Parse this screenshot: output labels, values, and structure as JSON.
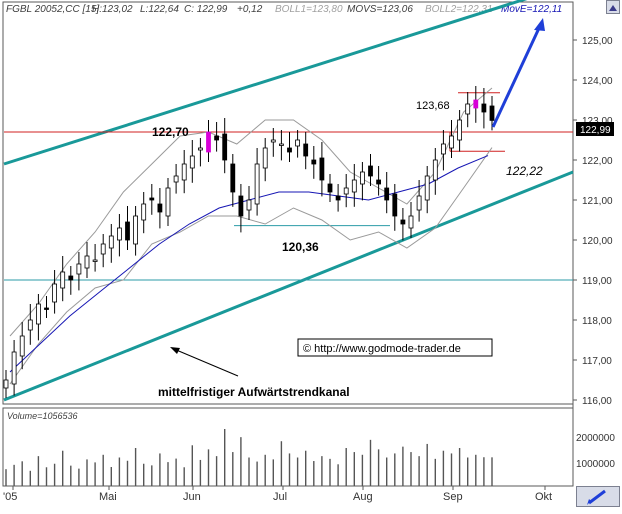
{
  "header": {
    "symbol": "FGBL 20052,CC [15]",
    "h": "H:123,02",
    "l": "L:122,64",
    "c": "C: 122,99",
    "chg": "+0,12",
    "boll1": "BOLL1=123,80",
    "movs": "MOVS=123,06",
    "boll2": "BOLL2=122,31",
    "move": "MovE=122,11"
  },
  "annotations": {
    "level_high": "122,70",
    "level_low": "120,36",
    "level_recent_high": "123,68",
    "level_recent_low": "122,22",
    "trendchannel": "mittelfristiger Aufwärtstrendkanal",
    "copyright": "© http://www.godmode-trader.de",
    "last_price": "122,99"
  },
  "volume_panel": {
    "label": "Volume=1056536",
    "ticks": [
      "2000000",
      "1000000"
    ]
  },
  "colors": {
    "channel": "#199999",
    "support_red": "#d02020",
    "support_blue": "#2b9ba7",
    "ma": "#1616b4",
    "boll": "#9a9a9a",
    "arrow": "#1f3fd8",
    "magenta": "#d800d8",
    "price_box": "#000000"
  },
  "chart_data": [
    {
      "type": "candlestick",
      "title": "FGBL 20052,CC [15]",
      "x_axis_labels": [
        "'05",
        "Mai",
        "Jun",
        "Jul",
        "Aug",
        "Sep",
        "Okt"
      ],
      "y_ticks": [
        "125,00",
        "124,00",
        "123,00",
        "122,00",
        "121,00",
        "120,00",
        "119,00",
        "118,00",
        "117,00",
        "116,00"
      ],
      "ylim": [
        115.9,
        125.9
      ],
      "horizontal_levels": [
        122.7,
        120.36,
        119.0,
        123.68,
        122.22
      ],
      "series": [
        {
          "name": "Close",
          "values": [
            116.5,
            117.2,
            117.6,
            118.0,
            118.4,
            118.3,
            118.9,
            119.2,
            119.0,
            119.4,
            119.6,
            119.5,
            119.9,
            120.1,
            120.3,
            120.0,
            120.6,
            120.9,
            121.0,
            120.7,
            121.3,
            121.6,
            121.9,
            122.1,
            122.3,
            122.7,
            122.5,
            122.0,
            121.2,
            120.6,
            121.0,
            121.9,
            122.3,
            122.5,
            122.4,
            122.2,
            122.5,
            122.1,
            121.9,
            121.5,
            121.2,
            121.0,
            121.3,
            121.5,
            121.7,
            121.6,
            121.4,
            121.0,
            120.6,
            120.4,
            120.6,
            121.1,
            121.6,
            122.0,
            122.4,
            122.6,
            123.0,
            123.4,
            123.5,
            123.2,
            122.99
          ]
        },
        {
          "name": "BOLL1",
          "values": [
            117.6,
            118.4,
            119.4,
            120.2,
            121.2,
            121.9,
            122.6,
            122.7,
            122.4,
            123.0,
            123.0,
            122.5,
            121.7,
            121.3,
            120.9,
            121.7,
            123.2,
            123.8
          ]
        },
        {
          "name": "BOLL2",
          "values": [
            116.4,
            117.4,
            118.2,
            118.8,
            119.0,
            119.9,
            120.2,
            120.6,
            120.6,
            120.4,
            120.8,
            120.5,
            120.0,
            120.2,
            119.8,
            120.3,
            121.3,
            122.31
          ]
        },
        {
          "name": "MovE",
          "values": [
            116.7,
            117.4,
            118.1,
            118.7,
            119.3,
            119.9,
            120.4,
            120.8,
            121.0,
            121.2,
            121.2,
            121.1,
            121.0,
            121.2,
            121.4,
            121.8,
            122.11
          ]
        }
      ]
    },
    {
      "type": "bar",
      "title": "Volume=1056536",
      "ylim": [
        0,
        2800000
      ],
      "values": [
        620000,
        780000,
        910000,
        560000,
        1100000,
        690000,
        820000,
        1300000,
        750000,
        640000,
        980000,
        870000,
        1150000,
        700000,
        1050000,
        930000,
        1400000,
        820000,
        760000,
        1200000,
        880000,
        1010000,
        690000,
        1500000,
        960000,
        1350000,
        1100000,
        2100000,
        1250000,
        1800000,
        1050000,
        900000,
        1150000,
        980000,
        1650000,
        1200000,
        1050000,
        1300000,
        920000,
        1100000,
        1000000,
        800000,
        1400000,
        1250000,
        1150000,
        1700000,
        1350000,
        1050000,
        1200000,
        1450000,
        1250000,
        1100000,
        1550000,
        1000000,
        1300000,
        1200000,
        1400000,
        1050000,
        1150000,
        1060000,
        1056536
      ]
    }
  ]
}
